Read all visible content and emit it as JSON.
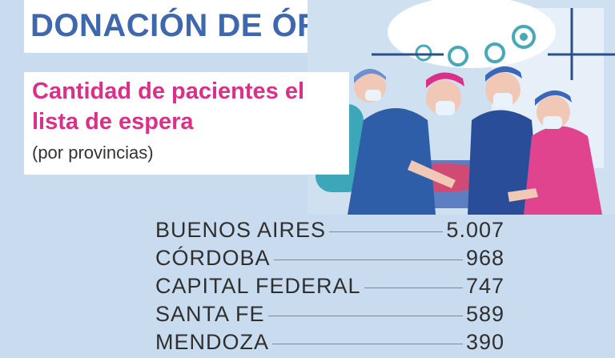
{
  "header": {
    "title": "DONACIÓN DE ÓRGANOS",
    "subtitle": "Cantidad de pacientes el lista de espera",
    "note": "(por provincias)"
  },
  "illustration": {
    "subject": "surgical-team-icon"
  },
  "provinces": [
    {
      "name": "BUENOS AIRES",
      "value": "5.007"
    },
    {
      "name": "CÓRDOBA",
      "value": "968"
    },
    {
      "name": "CAPITAL FEDERAL",
      "value": "747"
    },
    {
      "name": "SANTA FE",
      "value": "589"
    },
    {
      "name": "MENDOZA",
      "value": "390"
    }
  ],
  "colors": {
    "background": "#c9dcef",
    "title": "#3f67ad",
    "subtitle": "#dc2f87"
  }
}
